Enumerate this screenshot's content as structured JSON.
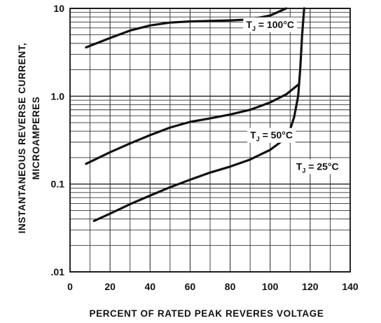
{
  "chart_data": {
    "type": "line",
    "title": "",
    "xlabel": "PERCENT OF RATED PEAK REVERES VOLTAGE",
    "ylabel": [
      "INSTANTANEOUS REVERSE CURRENT,",
      "MICROAMPERES"
    ],
    "x_scale": "linear",
    "y_scale": "log",
    "xlim": [
      0,
      140
    ],
    "ylim": [
      0.01,
      10
    ],
    "x_ticks": [
      {
        "value": 0,
        "label": "0"
      },
      {
        "value": 20,
        "label": "20"
      },
      {
        "value": 40,
        "label": "40"
      },
      {
        "value": 60,
        "label": "60"
      },
      {
        "value": 80,
        "label": "80"
      },
      {
        "value": 100,
        "label": "100"
      },
      {
        "value": 120,
        "label": "120"
      },
      {
        "value": 140,
        "label": "140"
      }
    ],
    "y_ticks": [
      {
        "value": 0.01,
        "label": ".01"
      },
      {
        "value": 0.1,
        "label": "0.1"
      },
      {
        "value": 1.0,
        "label": "1.0"
      },
      {
        "value": 10,
        "label": "10"
      }
    ],
    "grid": true,
    "series": [
      {
        "name": "TJ = 100°C",
        "label_parts": {
          "main": "T",
          "sub": "J",
          "rest": " = 100°C"
        },
        "label_at": [
          88,
          6.0
        ],
        "color": "#111111",
        "x": [
          8,
          20,
          30,
          40,
          50,
          60,
          70,
          80,
          90,
          100,
          108
        ],
        "y": [
          3.6,
          4.6,
          5.6,
          6.4,
          6.9,
          7.1,
          7.2,
          7.3,
          7.5,
          8.3,
          10.0
        ]
      },
      {
        "name": "TJ = 50°C",
        "label_parts": {
          "main": "T",
          "sub": "J",
          "rest": " = 50°C"
        },
        "label_at": [
          90,
          0.33
        ],
        "color": "#111111",
        "x": [
          8,
          20,
          30,
          40,
          50,
          60,
          70,
          80,
          90,
          100,
          108,
          114
        ],
        "y": [
          0.17,
          0.23,
          0.29,
          0.36,
          0.44,
          0.51,
          0.56,
          0.62,
          0.7,
          0.85,
          1.05,
          1.35
        ]
      },
      {
        "name": "TJ = 25°C",
        "label_parts": {
          "main": "T",
          "sub": "J",
          "rest": " = 25°C"
        },
        "label_at": [
          113,
          0.145
        ],
        "color": "#111111",
        "x": [
          12,
          20,
          30,
          40,
          50,
          60,
          70,
          80,
          90,
          100,
          106,
          110,
          112,
          114,
          115,
          116,
          117
        ],
        "y": [
          0.038,
          0.046,
          0.059,
          0.074,
          0.092,
          0.112,
          0.135,
          0.158,
          0.19,
          0.245,
          0.31,
          0.42,
          0.58,
          1.0,
          2.0,
          5.0,
          10.0
        ]
      }
    ]
  }
}
